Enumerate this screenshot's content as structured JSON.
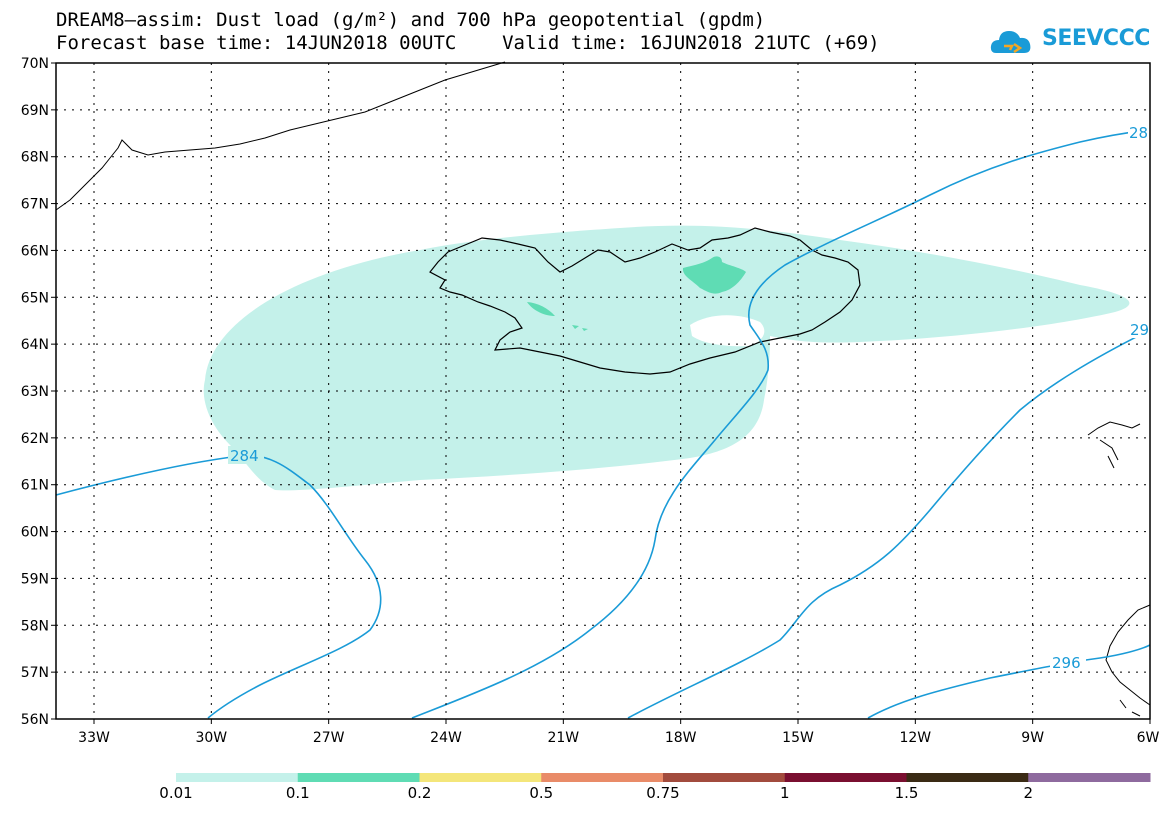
{
  "title_line1": "DREAM8–assim: Dust load (g/m²) and 700 hPa geopotential (gpdm)",
  "title_line2": "Forecast base time: 14JUN2018 00UTC    Valid time: 16JUN2018 21UTC (+69)",
  "logo_text": "SEEVCCC",
  "colors": {
    "dust_0_01": "#c4f1ea",
    "dust_0_1": "#5fdcb4",
    "coast": "#000000",
    "contour": "#1a9bd7",
    "frame": "#000000"
  },
  "lat_labels": [
    "70N",
    "69N",
    "68N",
    "67N",
    "66N",
    "65N",
    "64N",
    "63N",
    "62N",
    "61N",
    "60N",
    "59N",
    "58N",
    "57N",
    "56N"
  ],
  "lon_labels": [
    "33W",
    "30W",
    "27W",
    "24W",
    "21W",
    "18W",
    "15W",
    "12W",
    "9W",
    "6W"
  ],
  "contour_labels": [
    "284",
    "296",
    "28",
    "29"
  ],
  "colorbar": {
    "colors": [
      "#c4f1ea",
      "#5fdcb4",
      "#f4e67a",
      "#e98b68",
      "#a24b3d",
      "#7a0f30",
      "#3a2a14",
      "#8e6a9e"
    ],
    "labels": [
      "0.01",
      "0.1",
      "0.2",
      "0.5",
      "0.75",
      "1",
      "1.5",
      "2"
    ]
  }
}
